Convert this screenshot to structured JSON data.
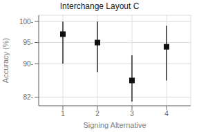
{
  "chart_data": {
    "type": "scatter",
    "title": "Interchange Layout C",
    "xlabel": "Signing Alternative",
    "ylabel": "Accuracy (%)",
    "x": [
      1,
      2,
      3,
      4
    ],
    "values": [
      97,
      95,
      86,
      94
    ],
    "ci_lower": [
      90,
      88,
      81,
      86
    ],
    "ci_upper": [
      100,
      100,
      92,
      99
    ],
    "xlim": [
      0.3,
      4.7
    ],
    "ylim": [
      80,
      101.5
    ],
    "xticks": [
      1,
      2,
      3,
      4
    ],
    "yticks": [
      {
        "value": 82,
        "label": "82-"
      },
      {
        "value": 90,
        "label": "90-"
      },
      {
        "value": 95,
        "label": "95-"
      },
      {
        "value": 100,
        "label": "100-"
      }
    ],
    "grid": true,
    "color": "#111111",
    "marker": "square"
  }
}
